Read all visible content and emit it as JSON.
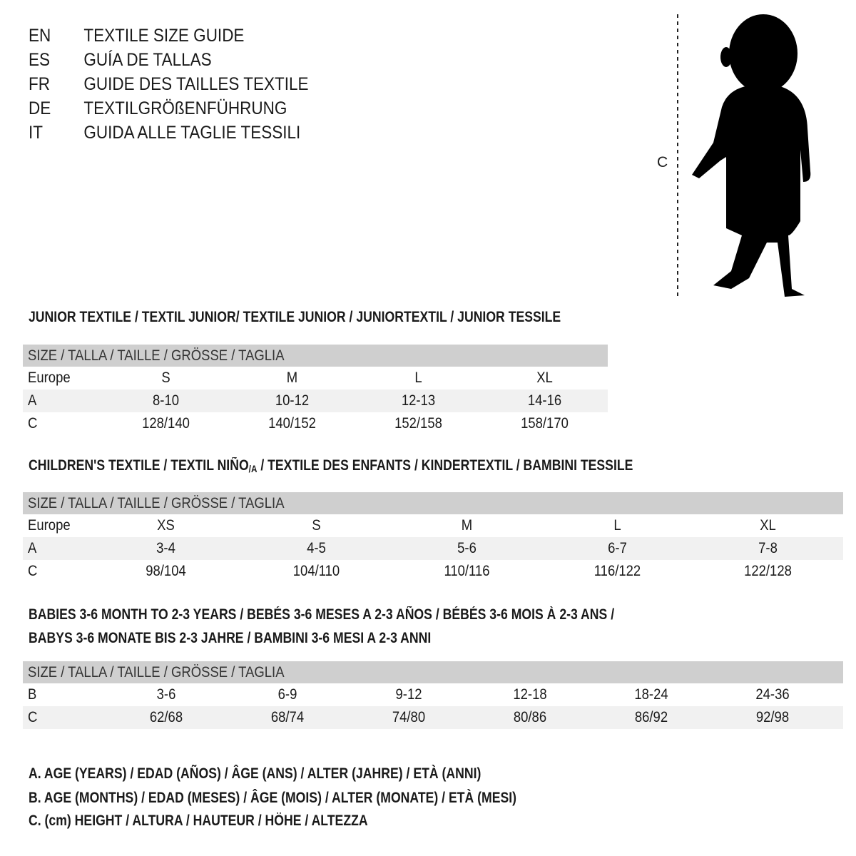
{
  "languages": [
    {
      "code": "EN",
      "title": "TEXTILE SIZE GUIDE"
    },
    {
      "code": "ES",
      "title": "GUÍA DE TALLAS"
    },
    {
      "code": "FR",
      "title": "GUIDE DES TAILLES TEXTILE"
    },
    {
      "code": "DE",
      "title": "TEXTILGRÖßENFÜHRUNG"
    },
    {
      "code": "IT",
      "title": "GUIDA ALLE TAGLIE TESSILI"
    }
  ],
  "figure": {
    "measure_label": "C"
  },
  "junior": {
    "title": "JUNIOR TEXTILE / TEXTIL JUNIOR/ TEXTILE JUNIOR / JUNIORTEXTIL / JUNIOR TESSILE",
    "header": "SIZE / TALLA / TAILLE / GRÖSSE / TAGLIA",
    "rows": [
      {
        "label": "Europe",
        "cells": [
          "S",
          "M",
          "L",
          "XL"
        ]
      },
      {
        "label": "A",
        "cells": [
          "8-10",
          "10-12",
          "12-13",
          "14-16"
        ]
      },
      {
        "label": "C",
        "cells": [
          "128/140",
          "140/152",
          "152/158",
          "158/170"
        ]
      }
    ]
  },
  "children": {
    "title_a": "CHILDREN'S TEXTILE / TEXTIL NIÑO",
    "title_sub": "/A",
    "title_b": " / TEXTILE DES ENFANTS / KINDERTEXTIL / BAMBINI TESSILE",
    "header": "SIZE / TALLA / TAILLE / GRÖSSE / TAGLIA",
    "rows": [
      {
        "label": "Europe",
        "cells": [
          "XS",
          "S",
          "M",
          "L",
          "XL"
        ]
      },
      {
        "label": "A",
        "cells": [
          "3-4",
          "4-5",
          "5-6",
          "6-7",
          "7-8"
        ]
      },
      {
        "label": "C",
        "cells": [
          "98/104",
          "104/110",
          "110/116",
          "116/122",
          "122/128"
        ]
      }
    ]
  },
  "babies": {
    "title_1": "BABIES 3-6 MONTH TO 2-3 YEARS / BEBÉS 3-6 MESES A 2-3 AÑOS / BÉBÉS 3-6 MOIS À 2-3 ANS /",
    "title_2": "BABYS 3-6 MONATE BIS 2-3 JAHRE / BAMBINI 3-6 MESI A 2-3 ANNI",
    "header": "SIZE / TALLA / TAILLE / GRÖSSE / TAGLIA",
    "rows": [
      {
        "label": "B",
        "cells": [
          "3-6",
          "6-9",
          "9-12",
          "12-18",
          "18-24",
          "24-36"
        ]
      },
      {
        "label": "C",
        "cells": [
          "62/68",
          "68/74",
          "74/80",
          "80/86",
          "86/92",
          "92/98"
        ]
      }
    ]
  },
  "notes": [
    "A. AGE (YEARS) / EDAD (AÑOS) / ÂGE (ANS) / ALTER (JAHRE) / ETÀ (ANNI)",
    "B. AGE (MONTHS) / EDAD (MESES) / ÂGE (MOIS) / ALTER (MONATE) / ETÀ (MESI)",
    "C. (cm) HEIGHT / ALTURA / HAUTEUR / HÖHE / ALTEZZA"
  ]
}
